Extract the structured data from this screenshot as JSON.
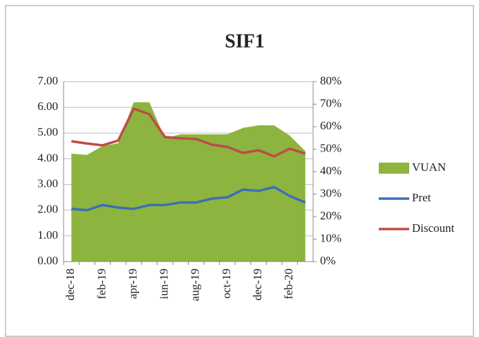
{
  "chart_data": {
    "type": "line",
    "title": "SIF1",
    "categories": [
      "dec-18",
      null,
      "feb-19",
      null,
      "apr-19",
      null,
      "iun-19",
      null,
      "aug-19",
      null,
      "oct-19",
      null,
      "dec-19",
      null,
      "feb-20",
      null
    ],
    "series": [
      {
        "name": "VUAN",
        "type": "area",
        "color": "#8db43e",
        "axis": "y",
        "values": [
          4.2,
          4.15,
          4.5,
          4.6,
          6.2,
          6.2,
          4.8,
          4.95,
          4.95,
          4.95,
          4.95,
          5.2,
          5.3,
          5.3,
          4.9,
          4.3
        ]
      },
      {
        "name": "Pret",
        "type": "line",
        "color": "#3b6fb6",
        "axis": "y",
        "values": [
          2.05,
          2.0,
          2.2,
          2.1,
          2.05,
          2.2,
          2.2,
          2.3,
          2.3,
          2.45,
          2.5,
          2.8,
          2.75,
          2.9,
          2.55,
          2.3
        ]
      },
      {
        "name": "Discount",
        "type": "line",
        "color": "#be4b48",
        "axis": "y2",
        "values": [
          53.5,
          52.5,
          51.7,
          53.8,
          68,
          65.5,
          55.4,
          54.8,
          54.5,
          52,
          51,
          48.3,
          49.5,
          46.8,
          50.2,
          48
        ]
      }
    ],
    "ylim": [
      0,
      7
    ],
    "yticks": [
      {
        "value": 0,
        "label": "0.00"
      },
      {
        "value": 1,
        "label": "1.00"
      },
      {
        "value": 2,
        "label": "2.00"
      },
      {
        "value": 3,
        "label": "3.00"
      },
      {
        "value": 4,
        "label": "4.00"
      },
      {
        "value": 5,
        "label": "5.00"
      },
      {
        "value": 6,
        "label": "6.00"
      },
      {
        "value": 7,
        "label": "7.00"
      }
    ],
    "y2lim": [
      0,
      80
    ],
    "y2ticks": [
      {
        "value": 0,
        "label": "0%"
      },
      {
        "value": 10,
        "label": "10%"
      },
      {
        "value": 20,
        "label": "20%"
      },
      {
        "value": 30,
        "label": "30%"
      },
      {
        "value": 40,
        "label": "40%"
      },
      {
        "value": 50,
        "label": "50%"
      },
      {
        "value": 60,
        "label": "60%"
      },
      {
        "value": 70,
        "label": "70%"
      },
      {
        "value": 80,
        "label": "80%"
      }
    ],
    "grid": true,
    "legend": "right"
  }
}
